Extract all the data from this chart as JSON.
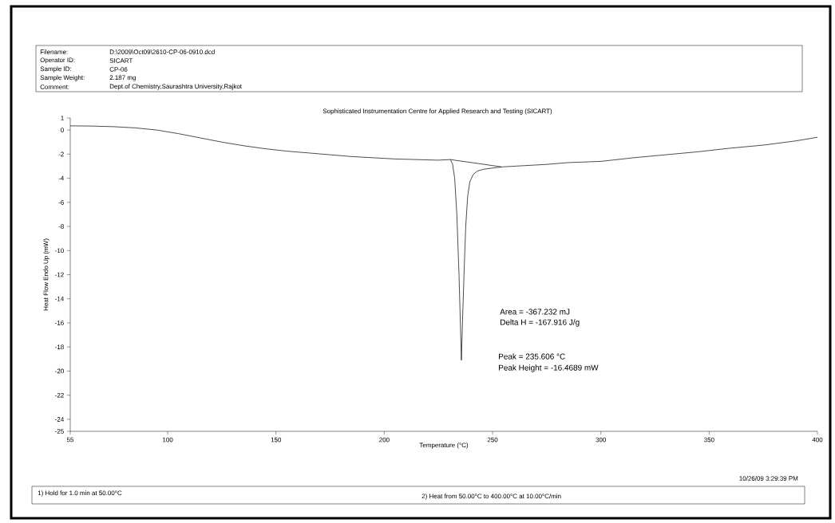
{
  "chart_data": {
    "type": "line",
    "title": "Sophisticated Instrumentation Centre for Applied Research and Testing (SICART)",
    "xlabel": "Temperature (°C)",
    "ylabel": "Heat Flow Endo Up (mW)",
    "series": [
      {
        "color": "#000000",
        "x": [
          55,
          65,
          75,
          85,
          95,
          105,
          115,
          125,
          135,
          145,
          155,
          165,
          175,
          185,
          195,
          205,
          215,
          225,
          230.5,
          231.5,
          232.5,
          233.5,
          234.5,
          235.2,
          235.6,
          236.1,
          236.8,
          237.6,
          238.5,
          239.5,
          241,
          243,
          246,
          250,
          255,
          265,
          275,
          285,
          300,
          315,
          330,
          345,
          360,
          375,
          390,
          400
        ],
        "values": [
          0.35,
          0.33,
          0.28,
          0.18,
          0.0,
          -0.3,
          -0.65,
          -1.0,
          -1.3,
          -1.55,
          -1.75,
          -1.9,
          -2.05,
          -2.2,
          -2.3,
          -2.4,
          -2.45,
          -2.5,
          -2.45,
          -2.8,
          -4,
          -7,
          -12,
          -16.5,
          -19.1,
          -16,
          -12,
          -8,
          -5.5,
          -4.3,
          -3.7,
          -3.4,
          -3.25,
          -3.15,
          -3.05,
          -2.95,
          -2.85,
          -2.7,
          -2.6,
          -2.3,
          -2.05,
          -1.8,
          -1.5,
          -1.25,
          -0.9,
          -0.6
        ]
      },
      {
        "color": "#000000",
        "type": "line",
        "x": [
          230.5,
          254
        ],
        "values": [
          -2.45,
          -3.05
        ]
      }
    ],
    "xlim": [
      55,
      400
    ],
    "ylim": [
      -25,
      1
    ],
    "xticks": [
      55,
      100,
      150,
      200,
      250,
      300,
      350,
      400
    ],
    "yticks": [
      1,
      0,
      -2,
      -4,
      -6,
      -8,
      -10,
      -12,
      -14,
      -16,
      -18,
      -20,
      -22,
      -24,
      -25
    ],
    "annotations": [
      "Filename:",
      "D:\\2009\\Oct09\\2610-CP-06-0910.dcd",
      "Operator ID:",
      "SICART",
      "Sample ID:",
      "CP-06",
      "Sample Weight:",
      "2.187 mg",
      "Comment:",
      "Dept.of Chemistry,Saurashtra University,Rajkot",
      "Area = -367.232 mJ",
      "Delta H = -167.916 J/g",
      "Peak = 235.606 °C",
      "Peak Height = -16.4689 mW",
      "10/26/09 3:29:39 PM",
      "1) Hold for 1.0 min at 50.00°C",
      "2)    Heat from 50.00°C to 400.00°C at 10.00°C/min"
    ],
    "grid": false,
    "marker": "none",
    "line_style": "solid"
  }
}
